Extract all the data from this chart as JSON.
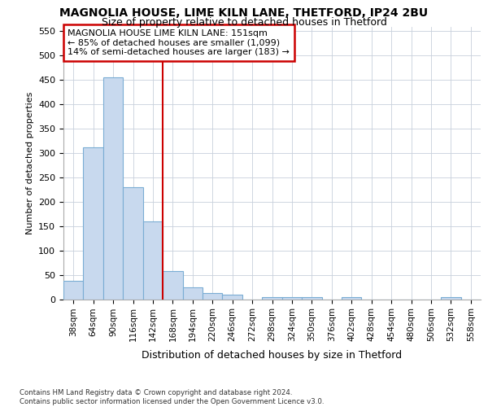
{
  "title1": "MAGNOLIA HOUSE, LIME KILN LANE, THETFORD, IP24 2BU",
  "title2": "Size of property relative to detached houses in Thetford",
  "xlabel": "Distribution of detached houses by size in Thetford",
  "ylabel": "Number of detached properties",
  "footer1": "Contains HM Land Registry data © Crown copyright and database right 2024.",
  "footer2": "Contains public sector information licensed under the Open Government Licence v3.0.",
  "bin_labels": [
    "38sqm",
    "64sqm",
    "90sqm",
    "116sqm",
    "142sqm",
    "168sqm",
    "194sqm",
    "220sqm",
    "246sqm",
    "272sqm",
    "298sqm",
    "324sqm",
    "350sqm",
    "376sqm",
    "402sqm",
    "428sqm",
    "454sqm",
    "480sqm",
    "506sqm",
    "532sqm",
    "558sqm"
  ],
  "bar_heights": [
    38,
    311,
    456,
    230,
    160,
    57,
    25,
    12,
    10,
    0,
    5,
    5,
    5,
    0,
    5,
    0,
    0,
    0,
    0,
    5,
    0
  ],
  "bar_color": "#c8d9ee",
  "bar_edge_color": "#7aadd4",
  "vline_x": 4.5,
  "vline_color": "#cc0000",
  "annotation_text": "MAGNOLIA HOUSE LIME KILN LANE: 151sqm\n← 85% of detached houses are smaller (1,099)\n14% of semi-detached houses are larger (183) →",
  "annotation_box_color": "#ffffff",
  "annotation_box_edge": "#cc0000",
  "ylim": [
    0,
    560
  ],
  "yticks": [
    0,
    50,
    100,
    150,
    200,
    250,
    300,
    350,
    400,
    450,
    500,
    550
  ],
  "background_color": "#ffffff",
  "grid_color": "#c8d0dc"
}
